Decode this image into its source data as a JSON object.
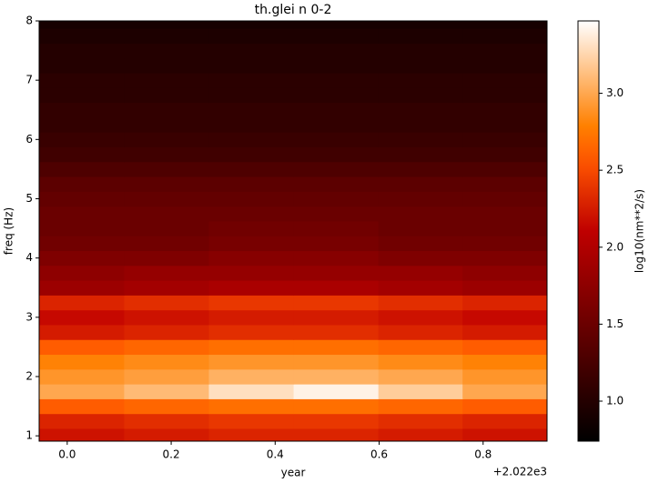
{
  "chart_data": {
    "type": "heatmap",
    "title": "th.glei n 0-2",
    "x_label": "year",
    "y_label": "freq (Hz)",
    "x_offset_label": "+2.022e3",
    "colorbar_label": "log10(nm**2/s)",
    "colormap": "gist_heat",
    "x": [
      0.028,
      0.191,
      0.354,
      0.517,
      0.68,
      0.842
    ],
    "y": [
      1.0,
      1.25,
      1.5,
      1.75,
      2.0,
      2.25,
      2.5,
      2.75,
      3.0,
      3.25,
      3.5,
      3.75,
      4.0,
      4.25,
      4.5,
      4.75,
      5.0,
      5.25,
      5.5,
      5.75,
      6.0,
      6.25,
      6.5,
      6.75,
      7.0,
      7.25,
      7.5,
      7.75,
      8.0
    ],
    "values": [
      [
        2.2,
        2.25,
        2.3,
        2.3,
        2.25,
        2.2
      ],
      [
        2.3,
        2.35,
        2.4,
        2.4,
        2.35,
        2.3
      ],
      [
        2.6,
        2.65,
        2.7,
        2.7,
        2.65,
        2.6
      ],
      [
        3.0,
        3.1,
        3.3,
        3.4,
        3.2,
        3.0
      ],
      [
        2.9,
        2.95,
        3.05,
        3.05,
        3.0,
        2.9
      ],
      [
        2.8,
        2.85,
        2.9,
        2.9,
        2.85,
        2.8
      ],
      [
        2.6,
        2.65,
        2.7,
        2.7,
        2.65,
        2.6
      ],
      [
        2.25,
        2.3,
        2.35,
        2.35,
        2.3,
        2.25
      ],
      [
        2.15,
        2.2,
        2.25,
        2.25,
        2.2,
        2.15
      ],
      [
        2.3,
        2.35,
        2.4,
        2.4,
        2.35,
        2.3
      ],
      [
        1.85,
        1.9,
        1.95,
        1.95,
        1.9,
        1.85
      ],
      [
        1.75,
        1.8,
        1.8,
        1.8,
        1.8,
        1.75
      ],
      [
        1.65,
        1.65,
        1.7,
        1.7,
        1.65,
        1.65
      ],
      [
        1.55,
        1.55,
        1.6,
        1.6,
        1.55,
        1.55
      ],
      [
        1.5,
        1.5,
        1.55,
        1.55,
        1.5,
        1.5
      ],
      [
        1.5,
        1.5,
        1.5,
        1.5,
        1.5,
        1.5
      ],
      [
        1.45,
        1.45,
        1.45,
        1.45,
        1.45,
        1.45
      ],
      [
        1.4,
        1.4,
        1.4,
        1.4,
        1.4,
        1.4
      ],
      [
        1.3,
        1.3,
        1.3,
        1.3,
        1.3,
        1.3
      ],
      [
        1.2,
        1.2,
        1.2,
        1.2,
        1.2,
        1.2
      ],
      [
        1.15,
        1.15,
        1.15,
        1.15,
        1.15,
        1.15
      ],
      [
        1.1,
        1.1,
        1.1,
        1.1,
        1.1,
        1.1
      ],
      [
        1.1,
        1.1,
        1.1,
        1.1,
        1.1,
        1.1
      ],
      [
        1.05,
        1.05,
        1.05,
        1.05,
        1.05,
        1.05
      ],
      [
        1.05,
        1.05,
        1.05,
        1.05,
        1.05,
        1.05
      ],
      [
        1.0,
        1.0,
        1.0,
        1.0,
        1.0,
        1.0
      ],
      [
        1.0,
        1.0,
        1.0,
        1.0,
        1.0,
        1.0
      ],
      [
        0.95,
        0.95,
        0.95,
        0.95,
        0.95,
        0.95
      ],
      [
        0.9,
        0.9,
        0.9,
        0.9,
        0.9,
        0.9
      ]
    ],
    "xlim": [
      -0.054,
      0.923
    ],
    "xticks": [
      {
        "value": 0,
        "label": "0.0"
      },
      {
        "value": 0.2,
        "label": "0.2"
      },
      {
        "value": 0.4,
        "label": "0.4"
      },
      {
        "value": 0.6,
        "label": "0.6"
      },
      {
        "value": 0.8,
        "label": "0.8"
      }
    ],
    "ylim": [
      0.91,
      8
    ],
    "yticks": [
      1,
      2,
      3,
      4,
      5,
      6,
      7,
      8
    ],
    "clim": [
      0.74,
      3.47
    ],
    "cticks": [
      {
        "value": 1,
        "label": "1.0"
      },
      {
        "value": 1.5,
        "label": "1.5"
      },
      {
        "value": 2,
        "label": "2.0"
      },
      {
        "value": 2.5,
        "label": "2.5"
      },
      {
        "value": 3,
        "label": "3.0"
      }
    ]
  }
}
